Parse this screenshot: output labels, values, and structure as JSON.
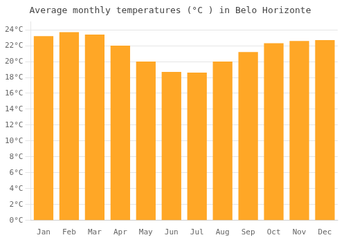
{
  "chart_data": {
    "type": "bar",
    "title": "Average monthly temperatures (°C ) in Belo Horizonte",
    "categories": [
      "Jan",
      "Feb",
      "Mar",
      "Apr",
      "May",
      "Jun",
      "Jul",
      "Aug",
      "Sep",
      "Oct",
      "Nov",
      "Dec"
    ],
    "values": [
      23.2,
      23.7,
      23.4,
      22.0,
      20.0,
      18.7,
      18.6,
      20.0,
      21.2,
      22.3,
      22.6,
      22.7
    ],
    "color": "#FFA726",
    "ylim": [
      0,
      25
    ],
    "yticks": [
      {
        "value": 0,
        "label": "0°C"
      },
      {
        "value": 2,
        "label": "2°C"
      },
      {
        "value": 4,
        "label": "4°C"
      },
      {
        "value": 6,
        "label": "6°C"
      },
      {
        "value": 8,
        "label": "8°C"
      },
      {
        "value": 10,
        "label": "10°C"
      },
      {
        "value": 12,
        "label": "12°C"
      },
      {
        "value": 14,
        "label": "14°C"
      },
      {
        "value": 16,
        "label": "16°C"
      },
      {
        "value": 18,
        "label": "18°C"
      },
      {
        "value": 20,
        "label": "20°C"
      },
      {
        "value": 22,
        "label": "22°C"
      },
      {
        "value": 24,
        "label": "24°C"
      }
    ],
    "grid": true
  }
}
